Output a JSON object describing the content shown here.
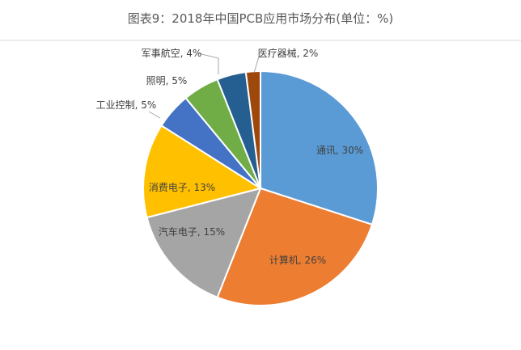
{
  "chart_data": {
    "type": "pie",
    "title": "图表9：2018年中国PCB应用市场分布(单位：%)",
    "start": "top",
    "direction": "clockwise",
    "slices": [
      {
        "label": "通讯",
        "value": 30,
        "display": "通讯, 30%",
        "color": "#5b9bd5"
      },
      {
        "label": "计算机",
        "value": 26,
        "display": "计算机, 26%",
        "color": "#ed7d31"
      },
      {
        "label": "汽车电子",
        "value": 15,
        "display": "汽车电子, 15%",
        "color": "#a5a5a5"
      },
      {
        "label": "消费电子",
        "value": 13,
        "display": "消费电子, 13%",
        "color": "#ffc000"
      },
      {
        "label": "工业控制",
        "value": 5,
        "display": "工业控制, 5%",
        "color": "#4472c4"
      },
      {
        "label": "照明",
        "value": 5,
        "display": "照明, 5%",
        "color": "#70ad47"
      },
      {
        "label": "军事航空",
        "value": 4,
        "display": "军事航空, 4%",
        "color": "#255e91"
      },
      {
        "label": "医疗器械",
        "value": 2,
        "display": "医疗器械, 2%",
        "color": "#9e480e"
      }
    ],
    "legend": "none"
  }
}
